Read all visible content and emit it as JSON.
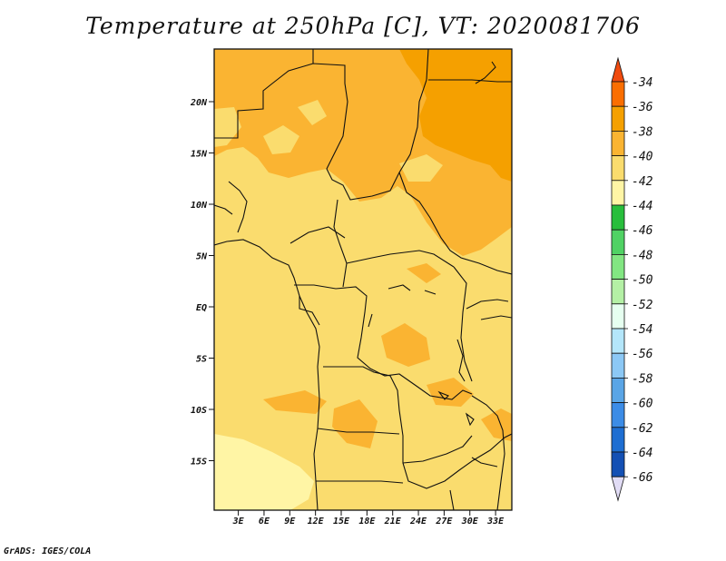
{
  "title": "Temperature at 250hPa [C], VT: 2020081706",
  "credit": "GrADS: IGES/COLA",
  "chart_data": {
    "type": "heatmap",
    "title": "Temperature at 250hPa [C], VT: 2020081706",
    "variable": "Temperature at 250hPa",
    "unit": "C",
    "valid_time": "2020081706",
    "lon_ticks": [
      "3E",
      "6E",
      "9E",
      "12E",
      "15E",
      "18E",
      "21E",
      "24E",
      "27E",
      "30E",
      "33E"
    ],
    "lat_ticks": [
      "20N",
      "15N",
      "10N",
      "5N",
      "EQ",
      "5S",
      "10S",
      "15S"
    ],
    "lon_values": [
      3,
      6,
      9,
      12,
      15,
      18,
      21,
      24,
      27,
      30,
      33
    ],
    "lat_values": [
      20,
      15,
      10,
      5,
      0,
      -5,
      -10,
      -15
    ],
    "colorbar": {
      "labels": [
        "-34",
        "-36",
        "-38",
        "-40",
        "-42",
        "-44",
        "-46",
        "-48",
        "-50",
        "-52",
        "-54",
        "-56",
        "-58",
        "-60",
        "-62",
        "-64",
        "-66"
      ],
      "colors": [
        "#f04b0f",
        "#fa6e00",
        "#f5a000",
        "#fab432",
        "#fadc6e",
        "#fff5a5",
        "#28be3c",
        "#50d264",
        "#82e682",
        "#b4f0a5",
        "#e6fff0",
        "#b4e6fa",
        "#8cc8f5",
        "#5aa5e6",
        "#3c8ce6",
        "#1e6ed2",
        "#1450b4",
        "#0a2d8c",
        "#0a0a6e",
        "#e1dcf5"
      ]
    },
    "regions": [
      {
        "level": "-38 to -36",
        "area": "northeast Sudan / Red Sea"
      },
      {
        "level": "-40 to -38",
        "area": "Sahara belt north of 14N and Sudan"
      },
      {
        "level": "-42 to -40",
        "area": "central and southern Africa"
      },
      {
        "level": "-44 to -42",
        "area": "southwest Atlantic near 15S"
      }
    ]
  }
}
